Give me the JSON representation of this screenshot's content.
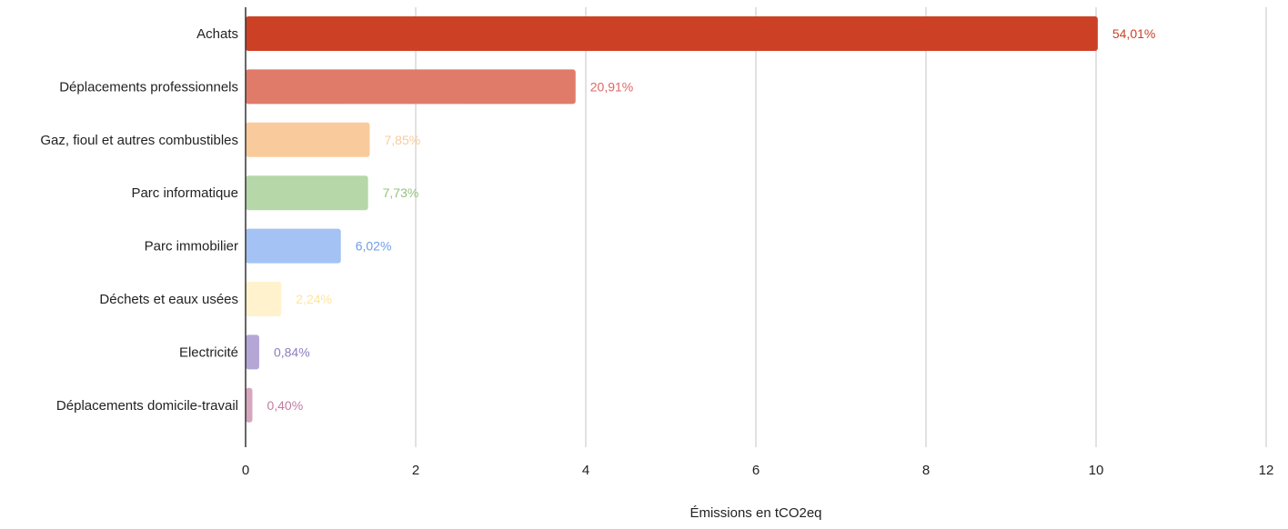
{
  "chart_data": {
    "type": "bar",
    "orientation": "horizontal",
    "title": "",
    "xlabel": "Émissions en tCO2eq",
    "ylabel": "",
    "xlim": [
      0,
      12
    ],
    "xticks": [
      0,
      2,
      4,
      6,
      8,
      10,
      12
    ],
    "grid": "vertical",
    "legend": "none",
    "categories": [
      "Achats",
      "Déplacements professionnels",
      "Gaz, fioul et autres combustibles",
      "Parc informatique",
      "Parc immobilier",
      "Déchets et eaux usées",
      "Electricité",
      "Déplacements domicile-travail"
    ],
    "values": [
      10.02,
      3.88,
      1.46,
      1.44,
      1.12,
      0.42,
      0.16,
      0.08
    ],
    "data_labels": [
      "54,01%",
      "20,91%",
      "7,85%",
      "7,73%",
      "6,02%",
      "2,24%",
      "0,84%",
      "0,40%"
    ],
    "colors": [
      "#cc4125",
      "#e07b6a",
      "#f9cb9c",
      "#b6d7a8",
      "#a4c2f4",
      "#fff2cc",
      "#b4a7d6",
      "#d5a6bd"
    ],
    "label_colors": [
      "#cc4125",
      "#e06666",
      "#f9cb9c",
      "#93c47d",
      "#6d9eeb",
      "#ffe599",
      "#8e7cc3",
      "#c27ba0"
    ]
  }
}
